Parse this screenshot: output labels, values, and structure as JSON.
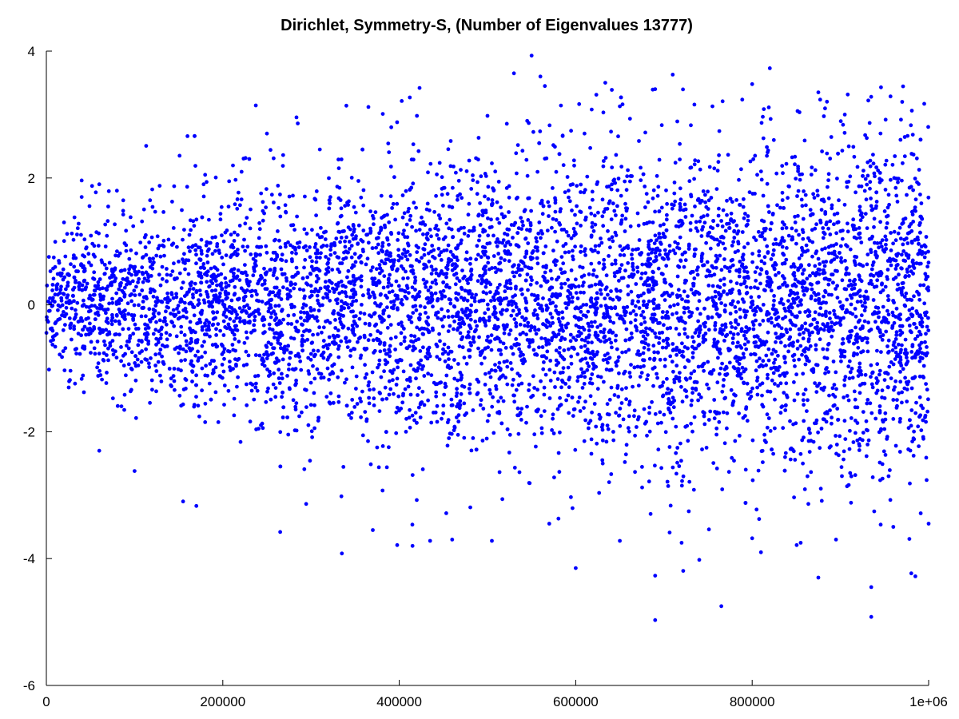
{
  "chart_data": {
    "type": "scatter",
    "title": "Dirichlet, Symmetry-S, (Number of Eigenvalues 13777)",
    "xlabel": "",
    "ylabel": "",
    "xlim": [
      0,
      1000000
    ],
    "ylim": [
      -6,
      4
    ],
    "x_ticks": [
      0,
      200000,
      400000,
      600000,
      800000,
      1000000
    ],
    "x_tick_labels": [
      "0",
      "200000",
      "400000",
      "600000",
      "800000",
      "1e+06"
    ],
    "y_ticks": [
      -6,
      -4,
      -2,
      0,
      2,
      4
    ],
    "y_tick_labels": [
      "-6",
      "-4",
      "-2",
      "0",
      "2",
      "4"
    ],
    "grid": false,
    "legend": "none",
    "marker_color": "#0000ff",
    "series": [
      {
        "points": [
          [
            550000,
            3.93
          ],
          [
            530000,
            3.65
          ],
          [
            565000,
            3.45
          ],
          [
            560000,
            3.6
          ],
          [
            423000,
            3.42
          ],
          [
            412000,
            3.27
          ],
          [
            820000,
            3.73
          ],
          [
            800000,
            3.48
          ],
          [
            710000,
            3.63
          ],
          [
            690000,
            3.4
          ],
          [
            650000,
            3.13
          ],
          [
            755000,
            3.13
          ],
          [
            875000,
            3.35
          ],
          [
            905000,
            3.0
          ],
          [
            970000,
            3.2
          ],
          [
            995000,
            3.17
          ],
          [
            340000,
            3.14
          ],
          [
            365000,
            3.12
          ],
          [
            285000,
            2.86
          ],
          [
            160000,
            2.66
          ],
          [
            500000,
            2.98
          ],
          [
            420000,
            2.98
          ],
          [
            250000,
            2.7
          ],
          [
            310000,
            2.45
          ],
          [
            545000,
            2.9
          ],
          [
            610000,
            2.7
          ],
          [
            640000,
            2.73
          ],
          [
            230000,
            2.3
          ],
          [
            180000,
            2.05
          ],
          [
            120000,
            1.82
          ],
          [
            80000,
            1.8
          ],
          [
            60000,
            1.9
          ],
          [
            40000,
            1.7
          ],
          [
            20000,
            1.3
          ],
          [
            690000,
            -4.97
          ],
          [
            935000,
            -4.92
          ],
          [
            765000,
            -4.75
          ],
          [
            935000,
            -4.45
          ],
          [
            600000,
            -4.15
          ],
          [
            985000,
            -4.28
          ],
          [
            875000,
            -4.3
          ],
          [
            690000,
            -4.27
          ],
          [
            335000,
            -3.92
          ],
          [
            415000,
            -3.8
          ],
          [
            810000,
            -3.9
          ],
          [
            800000,
            -3.68
          ],
          [
            720000,
            -3.75
          ],
          [
            650000,
            -3.72
          ],
          [
            460000,
            -3.7
          ],
          [
            265000,
            -3.58
          ],
          [
            170000,
            -3.17
          ],
          [
            155000,
            -3.1
          ],
          [
            100000,
            -2.62
          ],
          [
            60000,
            -2.3
          ],
          [
            370000,
            -3.55
          ],
          [
            570000,
            -3.45
          ],
          [
            505000,
            -3.72
          ],
          [
            435000,
            -3.72
          ],
          [
            960000,
            -3.5
          ],
          [
            1000000,
            -3.45
          ],
          [
            895000,
            -3.7
          ],
          [
            855000,
            -3.75
          ],
          [
            740000,
            -4.02
          ]
        ]
      }
    ]
  }
}
